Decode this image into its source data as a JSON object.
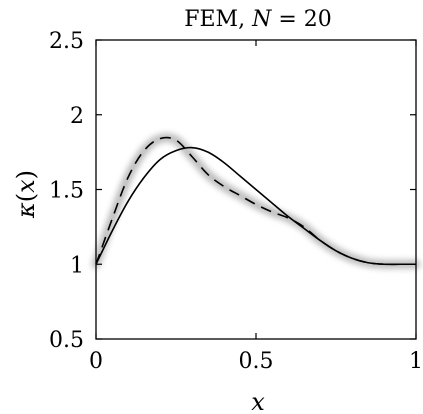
{
  "chart_data": {
    "type": "line",
    "title": "FEM, N = 20",
    "title_parts": {
      "prefix": "FEM, ",
      "var": "N",
      "suffix": " = 20"
    },
    "xlabel": "x",
    "ylabel": "κ(x)",
    "ylabel_parts": {
      "kappa": "κ",
      "open": "(",
      "var": "x",
      "close": ")"
    },
    "xlim": [
      0,
      1
    ],
    "ylim": [
      0.5,
      2.5
    ],
    "xticks": [
      0,
      0.5,
      1
    ],
    "xtick_labels": [
      "0",
      "0.5",
      "1"
    ],
    "yticks": [
      0.5,
      1,
      1.5,
      2,
      2.5
    ],
    "ytick_labels": [
      "0.5",
      "1",
      "1.5",
      "2",
      "2.5"
    ],
    "grid": false,
    "series": [
      {
        "style": "solid",
        "color": "#000000",
        "x": [
          0,
          0.05,
          0.1,
          0.15,
          0.2,
          0.25,
          0.3,
          0.35,
          0.4,
          0.45,
          0.5,
          0.55,
          0.6,
          0.65,
          0.7,
          0.75,
          0.8,
          0.85,
          0.9,
          0.95,
          1
        ],
        "y": [
          1.0,
          1.22,
          1.42,
          1.58,
          1.7,
          1.76,
          1.78,
          1.75,
          1.68,
          1.59,
          1.5,
          1.41,
          1.32,
          1.24,
          1.16,
          1.09,
          1.04,
          1.01,
          1.0,
          1.0,
          1.0
        ]
      },
      {
        "style": "dashed",
        "color": "#000000",
        "band": true,
        "band_color": "#b3b3b3",
        "x": [
          0,
          0.05,
          0.1,
          0.15,
          0.2,
          0.25,
          0.3,
          0.35,
          0.4,
          0.45,
          0.5,
          0.55,
          0.6,
          0.65,
          0.7,
          0.75,
          0.8,
          0.85,
          0.9,
          0.95,
          1
        ],
        "y": [
          1.0,
          1.3,
          1.58,
          1.76,
          1.84,
          1.83,
          1.72,
          1.6,
          1.52,
          1.46,
          1.4,
          1.35,
          1.31,
          1.25,
          1.16,
          1.09,
          1.04,
          1.01,
          1.0,
          1.0,
          1.0
        ]
      }
    ]
  }
}
